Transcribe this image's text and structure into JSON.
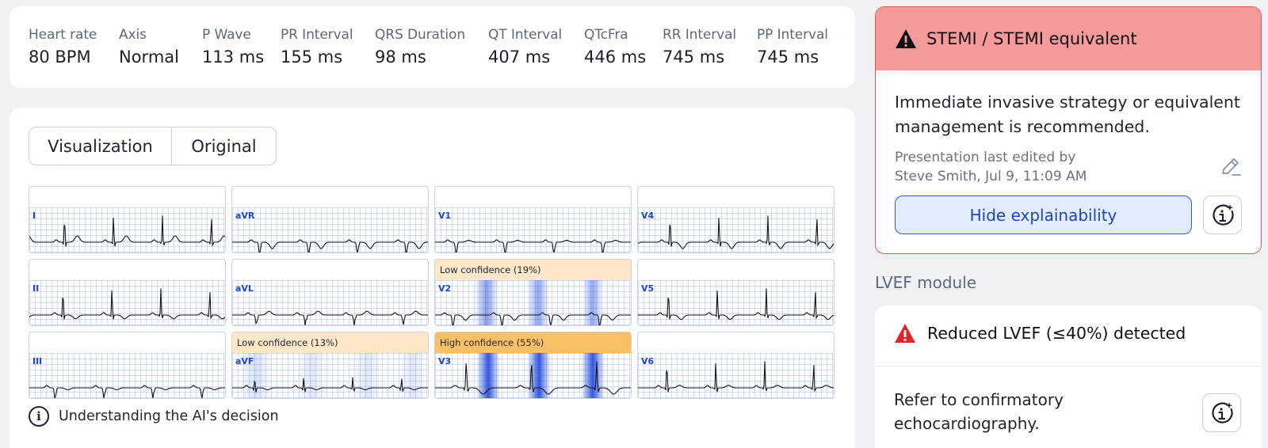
{
  "measurements": [
    {
      "label": "Heart rate",
      "value": "80 BPM"
    },
    {
      "label": "Axis",
      "value": "Normal"
    },
    {
      "label": "P Wave",
      "value": "113 ms"
    },
    {
      "label": "PR Interval",
      "value": "155 ms"
    },
    {
      "label": "QRS Duration",
      "value": "98 ms"
    },
    {
      "label": "QT Interval",
      "value": "407 ms"
    },
    {
      "label": "QTcFra",
      "value": "446 ms"
    },
    {
      "label": "RR Interval",
      "value": "745 ms"
    },
    {
      "label": "PP Interval",
      "value": "745 ms"
    }
  ],
  "view_toggle": {
    "visualization": "Visualization",
    "original": "Original"
  },
  "leads": [
    {
      "name": "I",
      "confidence": ""
    },
    {
      "name": "aVR",
      "confidence": ""
    },
    {
      "name": "V1",
      "confidence": ""
    },
    {
      "name": "V4",
      "confidence": ""
    },
    {
      "name": "II",
      "confidence": ""
    },
    {
      "name": "aVL",
      "confidence": ""
    },
    {
      "name": "V2",
      "confidence": "Low confidence (19%)",
      "level": "low"
    },
    {
      "name": "V5",
      "confidence": ""
    },
    {
      "name": "III",
      "confidence": ""
    },
    {
      "name": "aVF",
      "confidence": "Low confidence (13%)",
      "level": "low"
    },
    {
      "name": "V3",
      "confidence": "High confidence (55%)",
      "level": "high"
    },
    {
      "name": "V6",
      "confidence": ""
    }
  ],
  "ai_decision_label": "Understanding the AI's decision",
  "stemi": {
    "title": "STEMI / STEMI equivalent",
    "recommendation": "Immediate invasive strategy or equivalent management is recommended.",
    "edited_line1": "Presentation last edited by",
    "edited_line2": "Steve Smith, Jul 9, 11:09 AM",
    "hide_button": "Hide explainability"
  },
  "lvef": {
    "section_title": "LVEF module",
    "title": "Reduced LVEF (≤40%) detected",
    "note": "Refer to confirmatory echocardiography."
  },
  "colors": {
    "alert_header": "#f49a9a",
    "alert_border": "#e35458",
    "primary_blue": "#2f5ccc",
    "low_confidence": "#fde7c8",
    "high_confidence": "#fbc066",
    "warning_red": "#e0252b"
  }
}
